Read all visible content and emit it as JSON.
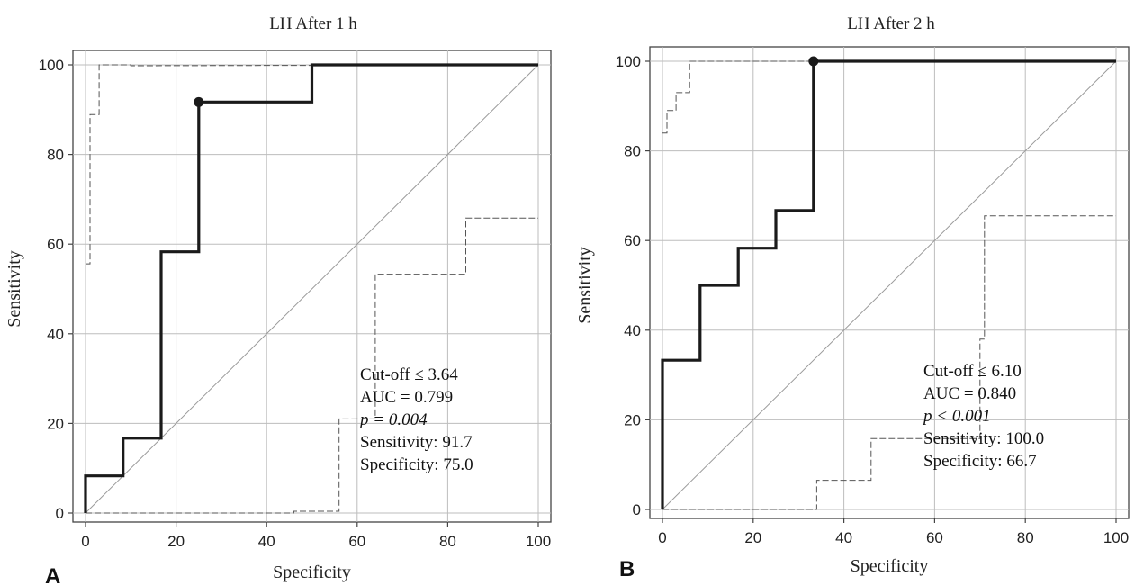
{
  "chart_data": [
    {
      "type": "line",
      "panel_label": "A",
      "title": "LH After 1 h",
      "xlabel": "Specificity",
      "ylabel": "Sensitivity",
      "xlim": [
        0,
        100
      ],
      "ylim": [
        0,
        100
      ],
      "x_ticks": [
        "0",
        "20",
        "40",
        "60",
        "80",
        "100"
      ],
      "y_ticks": [
        "0",
        "20",
        "40",
        "60",
        "80",
        "100"
      ],
      "grid": true,
      "roc_curve": [
        [
          0,
          0
        ],
        [
          0,
          8.3
        ],
        [
          8.3,
          8.3
        ],
        [
          8.3,
          16.7
        ],
        [
          16.7,
          16.7
        ],
        [
          16.7,
          58.3
        ],
        [
          25,
          58.3
        ],
        [
          25,
          91.7
        ],
        [
          50,
          91.7
        ],
        [
          50,
          100
        ],
        [
          100,
          100
        ]
      ],
      "cutoff_point": [
        25,
        91.7
      ],
      "upper_ci": [
        [
          0,
          55.6
        ],
        [
          1,
          55.6
        ],
        [
          1,
          88.9
        ],
        [
          3,
          88.9
        ],
        [
          3,
          100
        ],
        [
          10,
          100
        ],
        [
          10,
          99.8
        ],
        [
          100,
          100
        ]
      ],
      "lower_ci": [
        [
          0,
          0
        ],
        [
          46,
          0
        ],
        [
          46,
          0.4
        ],
        [
          56,
          0.4
        ],
        [
          56,
          21
        ],
        [
          57,
          21
        ],
        [
          57,
          21
        ],
        [
          64,
          21
        ],
        [
          64,
          37
        ],
        [
          64,
          37
        ],
        [
          64,
          53.3
        ],
        [
          84,
          53.3
        ],
        [
          84,
          65.8
        ],
        [
          100,
          65.8
        ]
      ],
      "reference_line": [
        [
          0,
          0
        ],
        [
          100,
          100
        ]
      ],
      "annotation": {
        "cutoff": "Cut-off ≤ 3.64",
        "auc": "AUC = 0.799",
        "p": "p = 0.004",
        "sensitivity": "Sensitivity: 91.7",
        "specificity": "Specificity: 75.0"
      }
    },
    {
      "type": "line",
      "panel_label": "B",
      "title": "LH After 2 h",
      "xlabel": "Specificity",
      "ylabel": "Sensitivity",
      "xlim": [
        0,
        100
      ],
      "ylim": [
        0,
        100
      ],
      "x_ticks": [
        "0",
        "20",
        "40",
        "60",
        "80",
        "100"
      ],
      "y_ticks": [
        "0",
        "20",
        "40",
        "60",
        "80",
        "100"
      ],
      "grid": true,
      "roc_curve": [
        [
          0,
          0
        ],
        [
          0,
          33.3
        ],
        [
          8.3,
          33.3
        ],
        [
          8.3,
          50
        ],
        [
          16.7,
          50
        ],
        [
          16.7,
          58.3
        ],
        [
          25,
          58.3
        ],
        [
          25,
          66.7
        ],
        [
          33.3,
          66.7
        ],
        [
          33.3,
          100
        ],
        [
          100,
          100
        ]
      ],
      "cutoff_point": [
        33.3,
        100
      ],
      "upper_ci": [
        [
          0,
          84
        ],
        [
          1,
          84
        ],
        [
          1,
          89
        ],
        [
          3,
          89
        ],
        [
          3,
          93
        ],
        [
          6,
          93
        ],
        [
          6,
          100
        ],
        [
          100,
          100
        ]
      ],
      "lower_ci": [
        [
          0,
          0
        ],
        [
          34,
          0
        ],
        [
          34,
          6.5
        ],
        [
          46,
          6.5
        ],
        [
          46,
          15.8
        ],
        [
          56,
          15.8
        ],
        [
          56,
          15.8
        ],
        [
          70,
          15.8
        ],
        [
          70,
          38
        ],
        [
          71,
          38
        ],
        [
          71,
          65.5
        ],
        [
          100,
          65.5
        ]
      ],
      "reference_line": [
        [
          0,
          0
        ],
        [
          100,
          100
        ]
      ],
      "annotation": {
        "cutoff": "Cut-off ≤ 6.10",
        "auc": "AUC = 0.840",
        "p": "p < 0.001",
        "sensitivity": "Sensitivity: 100.0",
        "specificity": "Specificity: 66.7"
      }
    }
  ]
}
